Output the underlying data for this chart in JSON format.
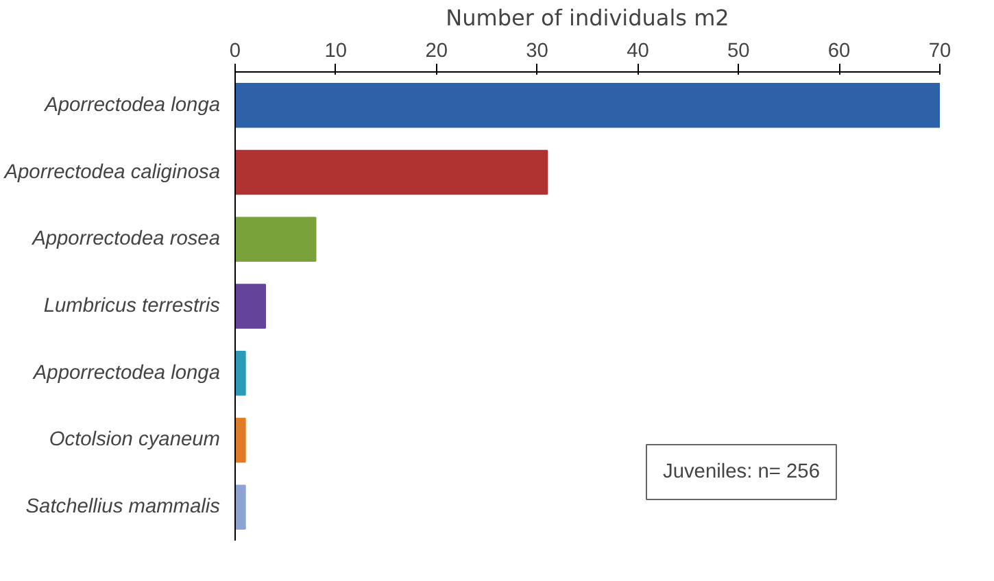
{
  "chart_data": {
    "type": "bar",
    "orientation": "horizontal",
    "xlabel": "Number of individuals m2",
    "categories": [
      "Aporrectodea longa",
      "Aporrectodea caliginosa",
      "Apporrectodea rosea",
      "Lumbricus terrestris",
      "Apporrectodea longa",
      "Octolsion cyaneum",
      "Satchellius mammalis"
    ],
    "values": [
      70,
      31,
      8,
      3,
      1,
      1,
      1
    ],
    "colors": [
      "#2e62a8",
      "#b03331",
      "#7aa23a",
      "#63449a",
      "#2c9bb8",
      "#e07c28",
      "#8ea3d2"
    ],
    "xlim": [
      0,
      70
    ],
    "xticks": [
      0,
      10,
      20,
      30,
      40,
      50,
      60,
      70
    ],
    "grid": false,
    "annotations": [
      "Juveniles: n= 256"
    ]
  }
}
